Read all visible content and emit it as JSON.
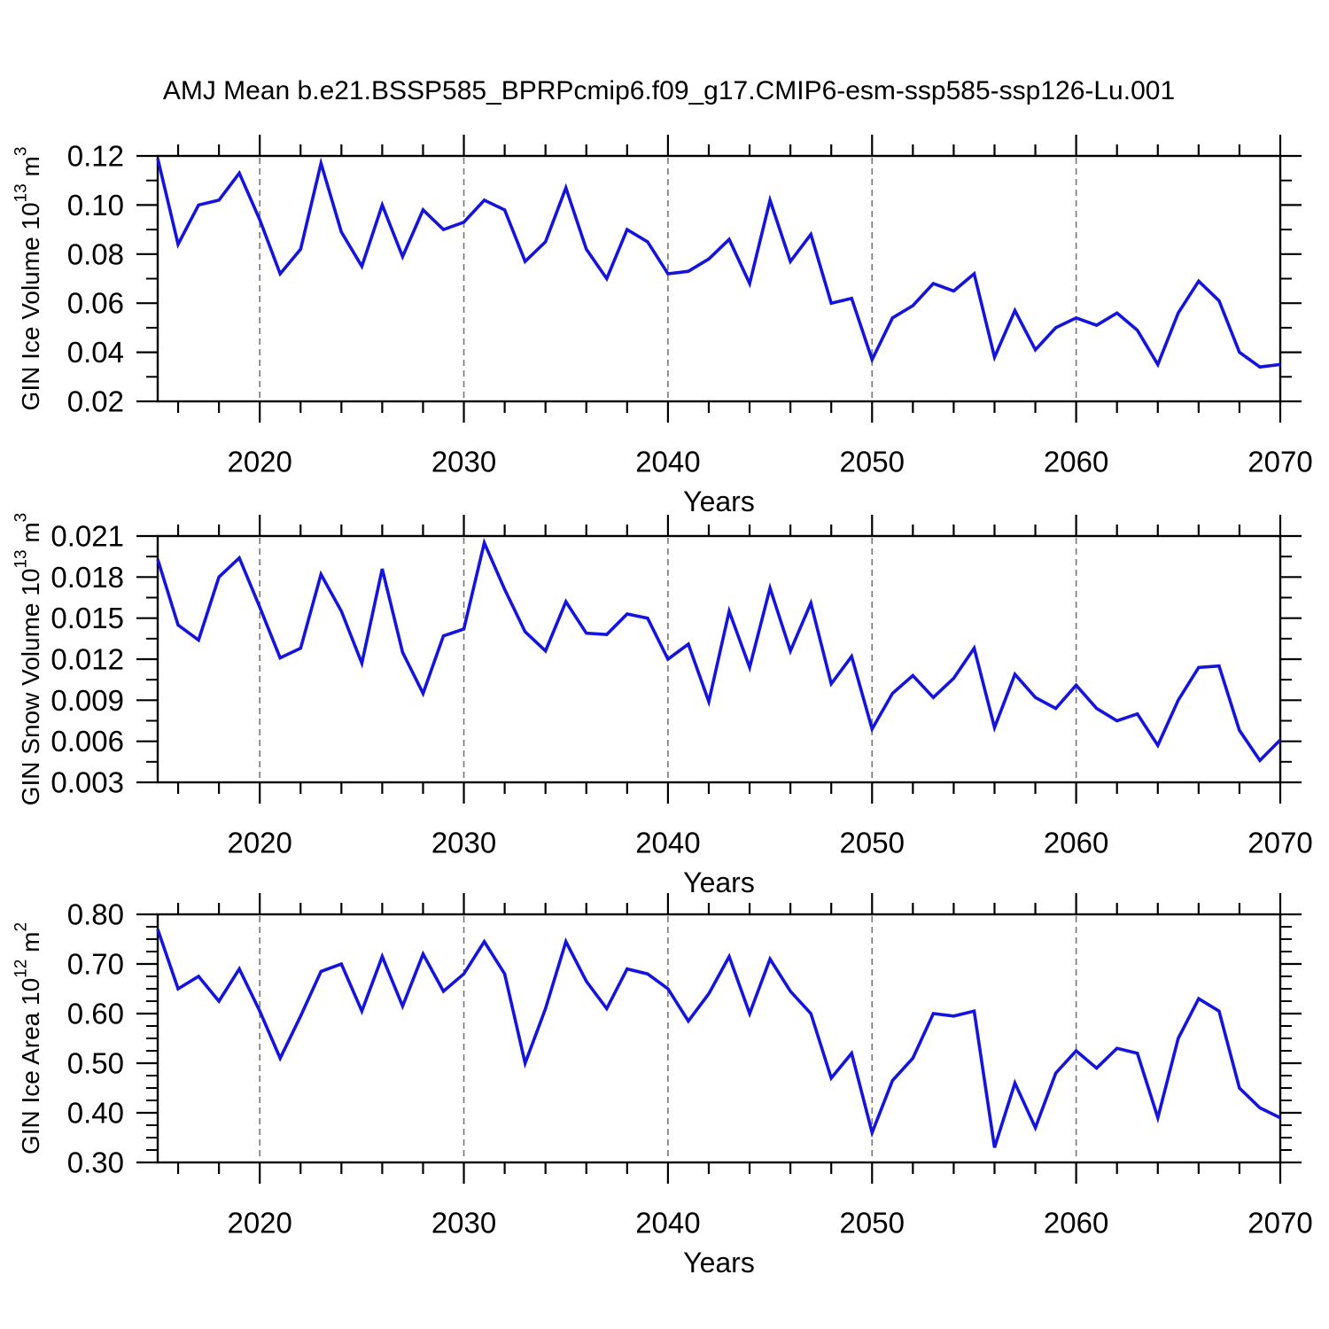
{
  "title": "AMJ Mean b.e21.BSSP585_BPRPcmip6.f09_g17.CMIP6-esm-ssp585-ssp126-Lu.001",
  "colors": {
    "line": "#1414dc",
    "frame": "#000000",
    "grid": "#777777",
    "text": "#000000",
    "background": "#ffffff"
  },
  "chart_data": {
    "type": "line",
    "title": "AMJ Mean b.e21.BSSP585_BPRPcmip6.f09_g17.CMIP6-esm-ssp585-ssp126-Lu.001",
    "xlabel": "Years",
    "x_range": [
      2015,
      2070
    ],
    "x_major_ticks": [
      2020,
      2030,
      2040,
      2050,
      2060,
      2070
    ],
    "x_tick_labels": [
      "2020",
      "2030",
      "2040",
      "2050",
      "2060",
      "2070"
    ],
    "x_minor_step": 2,
    "grid_years": [
      2020,
      2030,
      2040,
      2050,
      2060
    ],
    "grid_style": "dashed-vertical",
    "legend": "none",
    "x": [
      2015,
      2016,
      2017,
      2018,
      2019,
      2020,
      2021,
      2022,
      2023,
      2024,
      2025,
      2026,
      2027,
      2028,
      2029,
      2030,
      2031,
      2032,
      2033,
      2034,
      2035,
      2036,
      2037,
      2038,
      2039,
      2040,
      2041,
      2042,
      2043,
      2044,
      2045,
      2046,
      2047,
      2048,
      2049,
      2050,
      2051,
      2052,
      2053,
      2054,
      2055,
      2056,
      2057,
      2058,
      2059,
      2060,
      2061,
      2062,
      2063,
      2064,
      2065,
      2066,
      2067,
      2068,
      2069,
      2070
    ],
    "series": [
      {
        "name": "GIN Ice Volume",
        "axis_title": "GIN Ice Volume 10^13^ m^3^",
        "ylim": [
          0.02,
          0.12
        ],
        "y_major_ticks": [
          0.02,
          0.04,
          0.06,
          0.08,
          0.1,
          0.12
        ],
        "y_tick_labels": [
          "0.02",
          "0.04",
          "0.06",
          "0.08",
          "0.10",
          "0.12"
        ],
        "y_minor_step": 0.01,
        "values": [
          0.119,
          0.084,
          0.1,
          0.102,
          0.113,
          0.094,
          0.072,
          0.082,
          0.117,
          0.089,
          0.075,
          0.1,
          0.079,
          0.098,
          0.09,
          0.093,
          0.102,
          0.098,
          0.077,
          0.085,
          0.107,
          0.082,
          0.07,
          0.09,
          0.085,
          0.072,
          0.073,
          0.078,
          0.086,
          0.068,
          0.102,
          0.077,
          0.088,
          0.06,
          0.062,
          0.037,
          0.054,
          0.059,
          0.068,
          0.065,
          0.072,
          0.038,
          0.057,
          0.041,
          0.05,
          0.054,
          0.051,
          0.056,
          0.049,
          0.035,
          0.056,
          0.069,
          0.061,
          0.04,
          0.034,
          0.035
        ]
      },
      {
        "name": "GIN Snow Volume",
        "axis_title": "GIN Snow Volume 10^13^ m^3^",
        "ylim": [
          0.003,
          0.021
        ],
        "y_major_ticks": [
          0.003,
          0.006,
          0.009,
          0.012,
          0.015,
          0.018,
          0.021
        ],
        "y_tick_labels": [
          "0.003",
          "0.006",
          "0.009",
          "0.012",
          "0.015",
          "0.018",
          "0.021"
        ],
        "y_minor_step": 0.0015,
        "values": [
          0.0193,
          0.0145,
          0.0134,
          0.018,
          0.0194,
          0.0158,
          0.0121,
          0.0128,
          0.0182,
          0.0155,
          0.0117,
          0.0186,
          0.0125,
          0.0095,
          0.0137,
          0.0142,
          0.0205,
          0.0171,
          0.014,
          0.0126,
          0.0162,
          0.0139,
          0.0138,
          0.0153,
          0.015,
          0.012,
          0.0131,
          0.0089,
          0.0155,
          0.0114,
          0.0172,
          0.0126,
          0.0161,
          0.0102,
          0.0122,
          0.0069,
          0.0095,
          0.0108,
          0.0092,
          0.0106,
          0.0128,
          0.007,
          0.0109,
          0.0092,
          0.0084,
          0.0101,
          0.0084,
          0.0075,
          0.008,
          0.0057,
          0.009,
          0.0114,
          0.0115,
          0.0068,
          0.0046,
          0.0061
        ]
      },
      {
        "name": "GIN Ice Area",
        "axis_title": "GIN Ice Area 10^12^ m^2^",
        "ylim": [
          0.3,
          0.8
        ],
        "y_major_ticks": [
          0.3,
          0.4,
          0.5,
          0.6,
          0.7,
          0.8
        ],
        "y_tick_labels": [
          "0.30",
          "0.40",
          "0.50",
          "0.60",
          "0.70",
          "0.80"
        ],
        "y_minor_step": 0.025,
        "values": [
          0.77,
          0.65,
          0.675,
          0.625,
          0.69,
          0.605,
          0.51,
          0.595,
          0.685,
          0.7,
          0.605,
          0.715,
          0.615,
          0.72,
          0.645,
          0.68,
          0.745,
          0.68,
          0.5,
          0.61,
          0.745,
          0.665,
          0.61,
          0.69,
          0.68,
          0.65,
          0.585,
          0.64,
          0.715,
          0.6,
          0.71,
          0.645,
          0.6,
          0.47,
          0.52,
          0.36,
          0.465,
          0.51,
          0.6,
          0.595,
          0.605,
          0.33,
          0.46,
          0.37,
          0.48,
          0.525,
          0.49,
          0.53,
          0.52,
          0.39,
          0.55,
          0.63,
          0.605,
          0.45,
          0.41,
          0.39
        ]
      }
    ]
  }
}
